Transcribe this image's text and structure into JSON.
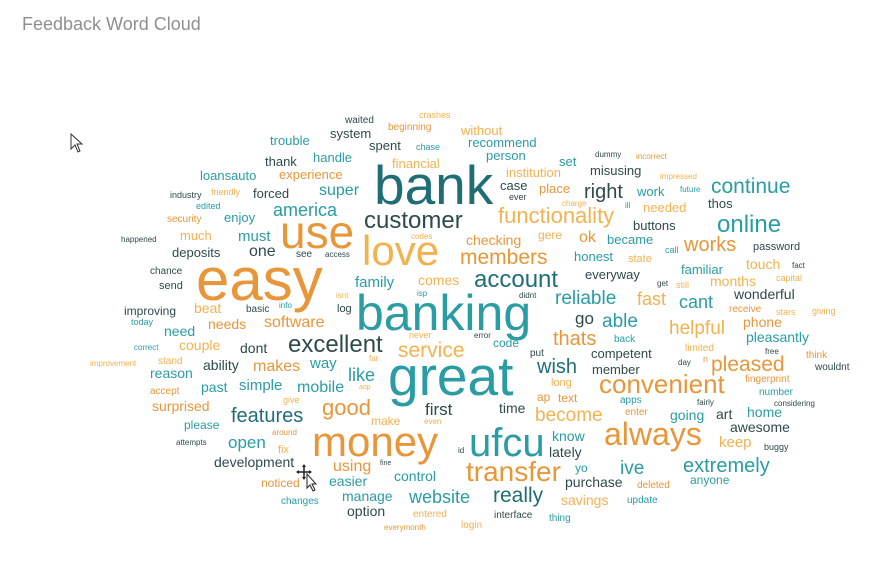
{
  "title": "Feedback Word Cloud",
  "colors": {
    "orange": "#E8963A",
    "light_orange": "#F2B24F",
    "teal": "#2A9CA4",
    "dark_teal": "#1F6E76",
    "slate": "#2E4A4C"
  },
  "chart_data": {
    "type": "wordcloud",
    "words": [
      {
        "text": "easy",
        "size": 60,
        "color": "orange"
      },
      {
        "text": "bank",
        "size": 55,
        "color": "dark_teal"
      },
      {
        "text": "great",
        "size": 55,
        "color": "teal"
      },
      {
        "text": "banking",
        "size": 50,
        "color": "teal"
      },
      {
        "text": "use",
        "size": 46,
        "color": "orange"
      },
      {
        "text": "love",
        "size": 42,
        "color": "light_orange"
      },
      {
        "text": "money",
        "size": 42,
        "color": "orange"
      },
      {
        "text": "ufcu",
        "size": 40,
        "color": "teal"
      },
      {
        "text": "always",
        "size": 32,
        "color": "orange"
      },
      {
        "text": "transfer",
        "size": 28,
        "color": "orange"
      },
      {
        "text": "convenient",
        "size": 26,
        "color": "orange"
      },
      {
        "text": "customer",
        "size": 24,
        "color": "slate"
      },
      {
        "text": "excellent",
        "size": 24,
        "color": "slate"
      },
      {
        "text": "online",
        "size": 24,
        "color": "teal"
      },
      {
        "text": "account",
        "size": 24,
        "color": "dark_teal"
      },
      {
        "text": "good",
        "size": 22,
        "color": "orange"
      },
      {
        "text": "functionality",
        "size": 22,
        "color": "light_orange"
      },
      {
        "text": "members",
        "size": 21,
        "color": "orange"
      },
      {
        "text": "service",
        "size": 21,
        "color": "light_orange"
      },
      {
        "text": "continue",
        "size": 21,
        "color": "teal"
      },
      {
        "text": "pleased",
        "size": 21,
        "color": "orange"
      },
      {
        "text": "really",
        "size": 21,
        "color": "dark_teal"
      },
      {
        "text": "works",
        "size": 20,
        "color": "orange"
      },
      {
        "text": "features",
        "size": 20,
        "color": "dark_teal"
      },
      {
        "text": "extremely",
        "size": 20,
        "color": "teal"
      },
      {
        "text": "right",
        "size": 20,
        "color": "slate"
      },
      {
        "text": "wish",
        "size": 20,
        "color": "dark_teal"
      },
      {
        "text": "thats",
        "size": 20,
        "color": "orange"
      },
      {
        "text": "reliable",
        "size": 19,
        "color": "teal"
      },
      {
        "text": "helpful",
        "size": 19,
        "color": "light_orange"
      },
      {
        "text": "become",
        "size": 19,
        "color": "light_orange"
      },
      {
        "text": "ive",
        "size": 19,
        "color": "teal"
      },
      {
        "text": "able",
        "size": 19,
        "color": "teal"
      },
      {
        "text": "america",
        "size": 18,
        "color": "teal"
      },
      {
        "text": "website",
        "size": 18,
        "color": "teal"
      },
      {
        "text": "cant",
        "size": 18,
        "color": "teal"
      },
      {
        "text": "fast",
        "size": 18,
        "color": "light_orange"
      },
      {
        "text": "like",
        "size": 18,
        "color": "teal"
      },
      {
        "text": "first",
        "size": 17,
        "color": "slate"
      },
      {
        "text": "open",
        "size": 17,
        "color": "teal"
      },
      {
        "text": "go",
        "size": 17,
        "color": "slate"
      },
      {
        "text": "super",
        "size": 16,
        "color": "teal"
      },
      {
        "text": "one",
        "size": 16,
        "color": "slate"
      },
      {
        "text": "software",
        "size": 16,
        "color": "orange"
      },
      {
        "text": "makes",
        "size": 16,
        "color": "orange"
      },
      {
        "text": "mobile",
        "size": 16,
        "color": "teal"
      },
      {
        "text": "using",
        "size": 16,
        "color": "orange"
      },
      {
        "text": "ok",
        "size": 16,
        "color": "orange"
      },
      {
        "text": "keep",
        "size": 15,
        "color": "light_orange"
      },
      {
        "text": "must",
        "size": 15,
        "color": "teal"
      },
      {
        "text": "family",
        "size": 15,
        "color": "teal"
      },
      {
        "text": "simple",
        "size": 15,
        "color": "teal"
      },
      {
        "text": "way",
        "size": 15,
        "color": "teal"
      },
      {
        "text": "savings",
        "size": 14,
        "color": "light_orange"
      },
      {
        "text": "phone",
        "size": 14,
        "color": "orange"
      },
      {
        "text": "awesome",
        "size": 14,
        "color": "slate"
      },
      {
        "text": "pleasantly",
        "size": 14,
        "color": "teal"
      },
      {
        "text": "art",
        "size": 14,
        "color": "slate"
      },
      {
        "text": "needs",
        "size": 14,
        "color": "orange"
      },
      {
        "text": "dont",
        "size": 14,
        "color": "slate"
      },
      {
        "text": "past",
        "size": 14,
        "color": "teal"
      },
      {
        "text": "ability",
        "size": 14,
        "color": "slate"
      },
      {
        "text": "home",
        "size": 14,
        "color": "teal"
      },
      {
        "text": "going",
        "size": 14,
        "color": "teal"
      },
      {
        "text": "lately",
        "size": 14,
        "color": "slate"
      },
      {
        "text": "purchase",
        "size": 14,
        "color": "slate"
      },
      {
        "text": "option",
        "size": 14,
        "color": "slate"
      },
      {
        "text": "manage",
        "size": 14,
        "color": "teal"
      },
      {
        "text": "easier",
        "size": 14,
        "color": "teal"
      },
      {
        "text": "control",
        "size": 14,
        "color": "teal"
      },
      {
        "text": "development",
        "size": 14,
        "color": "slate"
      },
      {
        "text": "know",
        "size": 14,
        "color": "teal"
      },
      {
        "text": "time",
        "size": 14,
        "color": "slate"
      },
      {
        "text": "wonderful",
        "size": 14,
        "color": "slate"
      },
      {
        "text": "months",
        "size": 14,
        "color": "light_orange"
      },
      {
        "text": "touch",
        "size": 14,
        "color": "light_orange"
      },
      {
        "text": "beat",
        "size": 14,
        "color": "light_orange"
      },
      {
        "text": "reason",
        "size": 14,
        "color": "teal"
      },
      {
        "text": "surprised",
        "size": 14,
        "color": "orange"
      },
      {
        "text": "couple",
        "size": 14,
        "color": "light_orange"
      },
      {
        "text": "need",
        "size": 14,
        "color": "teal"
      },
      {
        "text": "comes",
        "size": 14,
        "color": "light_orange"
      },
      {
        "text": "checking",
        "size": 14,
        "color": "orange"
      },
      {
        "text": "everyway",
        "size": 13,
        "color": "slate"
      },
      {
        "text": "honest",
        "size": 13,
        "color": "teal"
      },
      {
        "text": "familiar",
        "size": 13,
        "color": "teal"
      },
      {
        "text": "member",
        "size": 13,
        "color": "slate"
      },
      {
        "text": "competent",
        "size": 13,
        "color": "slate"
      },
      {
        "text": "became",
        "size": 13,
        "color": "teal"
      },
      {
        "text": "buttons",
        "size": 13,
        "color": "slate"
      },
      {
        "text": "needed",
        "size": 13,
        "color": "light_orange"
      },
      {
        "text": "thos",
        "size": 13,
        "color": "slate"
      },
      {
        "text": "work",
        "size": 13,
        "color": "teal"
      },
      {
        "text": "misusing",
        "size": 13,
        "color": "slate"
      },
      {
        "text": "place",
        "size": 13,
        "color": "orange"
      },
      {
        "text": "case",
        "size": 13,
        "color": "slate"
      },
      {
        "text": "set",
        "size": 13,
        "color": "teal"
      },
      {
        "text": "person",
        "size": 13,
        "color": "teal"
      },
      {
        "text": "recommend",
        "size": 13,
        "color": "teal"
      },
      {
        "text": "without",
        "size": 13,
        "color": "light_orange"
      },
      {
        "text": "institution",
        "size": 13,
        "color": "light_orange"
      },
      {
        "text": "financial",
        "size": 13,
        "color": "light_orange"
      },
      {
        "text": "spent",
        "size": 13,
        "color": "slate"
      },
      {
        "text": "system",
        "size": 13,
        "color": "slate"
      },
      {
        "text": "trouble",
        "size": 13,
        "color": "teal"
      },
      {
        "text": "handle",
        "size": 13,
        "color": "teal"
      },
      {
        "text": "thank",
        "size": 13,
        "color": "slate"
      },
      {
        "text": "experience",
        "size": 13,
        "color": "orange"
      },
      {
        "text": "loansauto",
        "size": 13,
        "color": "teal"
      },
      {
        "text": "forced",
        "size": 13,
        "color": "slate"
      },
      {
        "text": "enjoy",
        "size": 13,
        "color": "teal"
      },
      {
        "text": "much",
        "size": 13,
        "color": "light_orange"
      },
      {
        "text": "deposits",
        "size": 13,
        "color": "slate"
      },
      {
        "text": "improving",
        "size": 12,
        "color": "slate"
      },
      {
        "text": "gere",
        "size": 12,
        "color": "light_orange"
      },
      {
        "text": "yo",
        "size": 12,
        "color": "teal"
      },
      {
        "text": "text",
        "size": 12,
        "color": "orange"
      },
      {
        "text": "ap",
        "size": 12,
        "color": "orange"
      },
      {
        "text": "code",
        "size": 12,
        "color": "teal"
      },
      {
        "text": "noticed",
        "size": 12,
        "color": "orange"
      },
      {
        "text": "anyone",
        "size": 12,
        "color": "teal"
      },
      {
        "text": "please",
        "size": 12,
        "color": "teal"
      },
      {
        "text": "password",
        "size": 11,
        "color": "slate"
      },
      {
        "text": "state",
        "size": 11,
        "color": "light_orange"
      },
      {
        "text": "send",
        "size": 11,
        "color": "slate"
      },
      {
        "text": "chance",
        "size": 10,
        "color": "slate"
      },
      {
        "text": "log",
        "size": 11,
        "color": "slate"
      },
      {
        "text": "see",
        "size": 10,
        "color": "slate"
      },
      {
        "text": "basic",
        "size": 10,
        "color": "slate"
      },
      {
        "text": "long",
        "size": 11,
        "color": "light_orange"
      },
      {
        "text": "make",
        "size": 12,
        "color": "light_orange"
      },
      {
        "text": "put",
        "size": 10,
        "color": "slate"
      },
      {
        "text": "back",
        "size": 10,
        "color": "teal"
      },
      {
        "text": "receive",
        "size": 10,
        "color": "orange"
      },
      {
        "text": "number",
        "size": 10,
        "color": "teal"
      },
      {
        "text": "fingerprint",
        "size": 10,
        "color": "orange"
      },
      {
        "text": "wouldnt",
        "size": 10,
        "color": "slate"
      },
      {
        "text": "think",
        "size": 10,
        "color": "orange"
      },
      {
        "text": "stars",
        "size": 9,
        "color": "light_orange"
      },
      {
        "text": "giving",
        "size": 9,
        "color": "light_orange"
      },
      {
        "text": "capital",
        "size": 9,
        "color": "light_orange"
      },
      {
        "text": "fact",
        "size": 8,
        "color": "slate"
      },
      {
        "text": "limited",
        "size": 10,
        "color": "light_orange"
      },
      {
        "text": "future",
        "size": 8,
        "color": "teal"
      },
      {
        "text": "impressed",
        "size": 8,
        "color": "light_orange"
      },
      {
        "text": "incorrect",
        "size": 8,
        "color": "orange"
      },
      {
        "text": "dummy",
        "size": 8,
        "color": "slate"
      },
      {
        "text": "get",
        "size": 8,
        "color": "slate"
      },
      {
        "text": "still",
        "size": 9,
        "color": "light_orange"
      },
      {
        "text": "call",
        "size": 9,
        "color": "teal"
      },
      {
        "text": "ill",
        "size": 8,
        "color": "teal"
      },
      {
        "text": "charge",
        "size": 8,
        "color": "light_orange"
      },
      {
        "text": "ever",
        "size": 9,
        "color": "slate"
      },
      {
        "text": "didnt",
        "size": 8,
        "color": "slate"
      },
      {
        "text": "isp",
        "size": 8,
        "color": "teal"
      },
      {
        "text": "never",
        "size": 9,
        "color": "light_orange"
      },
      {
        "text": "error",
        "size": 8,
        "color": "slate"
      },
      {
        "text": "isnt",
        "size": 8,
        "color": "light_orange"
      },
      {
        "text": "info",
        "size": 8,
        "color": "teal"
      },
      {
        "text": "access",
        "size": 8,
        "color": "slate"
      },
      {
        "text": "codes",
        "size": 8,
        "color": "light_orange"
      },
      {
        "text": "chase",
        "size": 9,
        "color": "teal"
      },
      {
        "text": "crashes",
        "size": 9,
        "color": "light_orange"
      },
      {
        "text": "waited",
        "size": 10,
        "color": "slate"
      },
      {
        "text": "beginning",
        "size": 10,
        "color": "orange"
      },
      {
        "text": "industry",
        "size": 9,
        "color": "slate"
      },
      {
        "text": "friendly",
        "size": 9,
        "color": "light_orange"
      },
      {
        "text": "edited",
        "size": 9,
        "color": "teal"
      },
      {
        "text": "security",
        "size": 10,
        "color": "orange"
      },
      {
        "text": "happened",
        "size": 8,
        "color": "slate"
      },
      {
        "text": "today",
        "size": 9,
        "color": "teal"
      },
      {
        "text": "correct",
        "size": 8,
        "color": "teal"
      },
      {
        "text": "improvement",
        "size": 8,
        "color": "light_orange"
      },
      {
        "text": "stand",
        "size": 10,
        "color": "light_orange"
      },
      {
        "text": "accept",
        "size": 10,
        "color": "orange"
      },
      {
        "text": "attempts",
        "size": 8,
        "color": "slate"
      },
      {
        "text": "far",
        "size": 8,
        "color": "light_orange"
      },
      {
        "text": "aop",
        "size": 7,
        "color": "light_orange"
      },
      {
        "text": "give",
        "size": 9,
        "color": "light_orange"
      },
      {
        "text": "around",
        "size": 8,
        "color": "orange"
      },
      {
        "text": "fix",
        "size": 11,
        "color": "light_orange"
      },
      {
        "text": "even",
        "size": 8,
        "color": "light_orange"
      },
      {
        "text": "fine",
        "size": 7,
        "color": "slate"
      },
      {
        "text": "id",
        "size": 8,
        "color": "slate"
      },
      {
        "text": "changes",
        "size": 10,
        "color": "teal"
      },
      {
        "text": "entered",
        "size": 10,
        "color": "light_orange"
      },
      {
        "text": "everymonth",
        "size": 8,
        "color": "orange"
      },
      {
        "text": "login",
        "size": 10,
        "color": "light_orange"
      },
      {
        "text": "interface",
        "size": 10,
        "color": "slate"
      },
      {
        "text": "thing",
        "size": 10,
        "color": "teal"
      },
      {
        "text": "update",
        "size": 10,
        "color": "teal"
      },
      {
        "text": "deleted",
        "size": 10,
        "color": "orange"
      },
      {
        "text": "buggy",
        "size": 9,
        "color": "slate"
      },
      {
        "text": "considering",
        "size": 8,
        "color": "slate"
      },
      {
        "text": "enter",
        "size": 10,
        "color": "orange"
      },
      {
        "text": "fairly",
        "size": 8,
        "color": "slate"
      },
      {
        "text": "apps",
        "size": 10,
        "color": "teal"
      },
      {
        "text": "day",
        "size": 8,
        "color": "slate"
      },
      {
        "text": "n",
        "size": 9,
        "color": "orange"
      },
      {
        "text": "free",
        "size": 8,
        "color": "slate"
      }
    ]
  }
}
